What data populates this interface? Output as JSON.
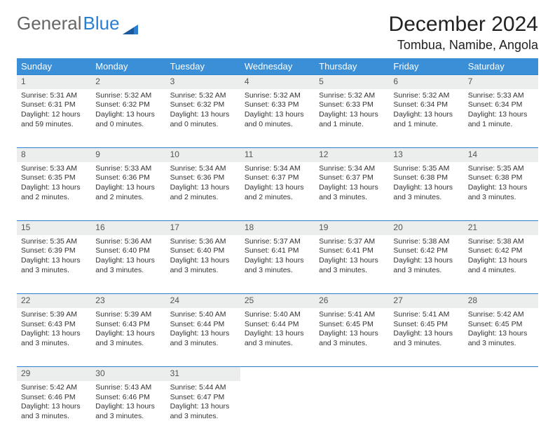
{
  "logo": {
    "part1": "General",
    "part2": "Blue"
  },
  "header": {
    "month_title": "December 2024",
    "location": "Tombua, Namibe, Angola"
  },
  "colors": {
    "header_bg": "#3b8fd6",
    "header_text": "#ffffff",
    "daynum_bg": "#eceded",
    "daynum_border": "#2a7fd4",
    "text": "#333333",
    "logo_gray": "#666666",
    "logo_blue": "#2a7fd4"
  },
  "day_headers": [
    "Sunday",
    "Monday",
    "Tuesday",
    "Wednesday",
    "Thursday",
    "Friday",
    "Saturday"
  ],
  "weeks": [
    [
      {
        "n": "1",
        "sr": "5:31 AM",
        "ss": "6:31 PM",
        "dl": "12 hours and 59 minutes."
      },
      {
        "n": "2",
        "sr": "5:32 AM",
        "ss": "6:32 PM",
        "dl": "13 hours and 0 minutes."
      },
      {
        "n": "3",
        "sr": "5:32 AM",
        "ss": "6:32 PM",
        "dl": "13 hours and 0 minutes."
      },
      {
        "n": "4",
        "sr": "5:32 AM",
        "ss": "6:33 PM",
        "dl": "13 hours and 0 minutes."
      },
      {
        "n": "5",
        "sr": "5:32 AM",
        "ss": "6:33 PM",
        "dl": "13 hours and 1 minute."
      },
      {
        "n": "6",
        "sr": "5:32 AM",
        "ss": "6:34 PM",
        "dl": "13 hours and 1 minute."
      },
      {
        "n": "7",
        "sr": "5:33 AM",
        "ss": "6:34 PM",
        "dl": "13 hours and 1 minute."
      }
    ],
    [
      {
        "n": "8",
        "sr": "5:33 AM",
        "ss": "6:35 PM",
        "dl": "13 hours and 2 minutes."
      },
      {
        "n": "9",
        "sr": "5:33 AM",
        "ss": "6:36 PM",
        "dl": "13 hours and 2 minutes."
      },
      {
        "n": "10",
        "sr": "5:34 AM",
        "ss": "6:36 PM",
        "dl": "13 hours and 2 minutes."
      },
      {
        "n": "11",
        "sr": "5:34 AM",
        "ss": "6:37 PM",
        "dl": "13 hours and 2 minutes."
      },
      {
        "n": "12",
        "sr": "5:34 AM",
        "ss": "6:37 PM",
        "dl": "13 hours and 3 minutes."
      },
      {
        "n": "13",
        "sr": "5:35 AM",
        "ss": "6:38 PM",
        "dl": "13 hours and 3 minutes."
      },
      {
        "n": "14",
        "sr": "5:35 AM",
        "ss": "6:38 PM",
        "dl": "13 hours and 3 minutes."
      }
    ],
    [
      {
        "n": "15",
        "sr": "5:35 AM",
        "ss": "6:39 PM",
        "dl": "13 hours and 3 minutes."
      },
      {
        "n": "16",
        "sr": "5:36 AM",
        "ss": "6:40 PM",
        "dl": "13 hours and 3 minutes."
      },
      {
        "n": "17",
        "sr": "5:36 AM",
        "ss": "6:40 PM",
        "dl": "13 hours and 3 minutes."
      },
      {
        "n": "18",
        "sr": "5:37 AM",
        "ss": "6:41 PM",
        "dl": "13 hours and 3 minutes."
      },
      {
        "n": "19",
        "sr": "5:37 AM",
        "ss": "6:41 PM",
        "dl": "13 hours and 3 minutes."
      },
      {
        "n": "20",
        "sr": "5:38 AM",
        "ss": "6:42 PM",
        "dl": "13 hours and 3 minutes."
      },
      {
        "n": "21",
        "sr": "5:38 AM",
        "ss": "6:42 PM",
        "dl": "13 hours and 4 minutes."
      }
    ],
    [
      {
        "n": "22",
        "sr": "5:39 AM",
        "ss": "6:43 PM",
        "dl": "13 hours and 3 minutes."
      },
      {
        "n": "23",
        "sr": "5:39 AM",
        "ss": "6:43 PM",
        "dl": "13 hours and 3 minutes."
      },
      {
        "n": "24",
        "sr": "5:40 AM",
        "ss": "6:44 PM",
        "dl": "13 hours and 3 minutes."
      },
      {
        "n": "25",
        "sr": "5:40 AM",
        "ss": "6:44 PM",
        "dl": "13 hours and 3 minutes."
      },
      {
        "n": "26",
        "sr": "5:41 AM",
        "ss": "6:45 PM",
        "dl": "13 hours and 3 minutes."
      },
      {
        "n": "27",
        "sr": "5:41 AM",
        "ss": "6:45 PM",
        "dl": "13 hours and 3 minutes."
      },
      {
        "n": "28",
        "sr": "5:42 AM",
        "ss": "6:45 PM",
        "dl": "13 hours and 3 minutes."
      }
    ],
    [
      {
        "n": "29",
        "sr": "5:42 AM",
        "ss": "6:46 PM",
        "dl": "13 hours and 3 minutes."
      },
      {
        "n": "30",
        "sr": "5:43 AM",
        "ss": "6:46 PM",
        "dl": "13 hours and 3 minutes."
      },
      {
        "n": "31",
        "sr": "5:44 AM",
        "ss": "6:47 PM",
        "dl": "13 hours and 3 minutes."
      },
      null,
      null,
      null,
      null
    ]
  ],
  "labels": {
    "sunrise": "Sunrise:",
    "sunset": "Sunset:",
    "daylight": "Daylight:"
  }
}
